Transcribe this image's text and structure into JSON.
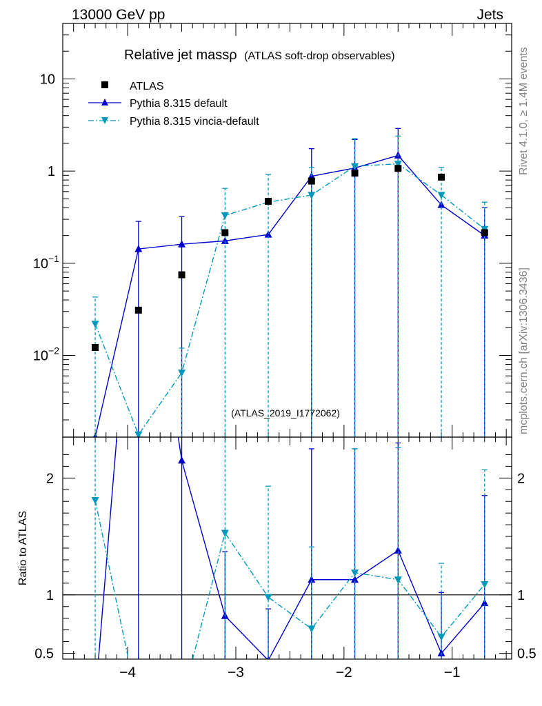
{
  "header": {
    "energy": "13000 GeV pp",
    "category": "Jets"
  },
  "plot": {
    "title_main": "Relative jet massρ",
    "title_sub": "(ATLAS soft-drop observables)",
    "watermark": "(ATLAS_2019_I1772062)",
    "ratio_ylabel": "Ratio to ATLAS",
    "ratio_reference": 1
  },
  "side_labels": {
    "rivet": "Rivet 4.1.0, ≥ 1.4M events",
    "mcplots": "mcplots.cern.ch [arXiv:1306.3436]"
  },
  "colors": {
    "atlas": "#000000",
    "default": "#0000cc",
    "vincia": "#0099bb",
    "watermark": "#999999",
    "side": "#808080"
  },
  "chart_data": {
    "type": "line",
    "x": [
      -4.3,
      -3.9,
      -3.5,
      -3.1,
      -2.7,
      -2.3,
      -1.9,
      -1.5,
      -1.1,
      -0.7
    ],
    "xlim": [
      -4.6,
      -0.45
    ],
    "x_ticks": [
      -4,
      -3,
      -2,
      -1
    ],
    "x_tick_labels": [
      "−4",
      "−3",
      "−2",
      "−1"
    ],
    "main": {
      "ylog": true,
      "ylim": [
        0.0013,
        40
      ],
      "y_tick_labels": [
        {
          "value": 0.01,
          "base": "10",
          "exp": "−2"
        },
        {
          "value": 0.1,
          "base": "10",
          "exp": "−1"
        },
        {
          "value": 1,
          "base": "1",
          "exp": ""
        },
        {
          "value": 10,
          "base": "10",
          "exp": ""
        }
      ]
    },
    "ratio": {
      "ylim": [
        0.45,
        2.35
      ],
      "y_ticks": [
        0.5,
        1,
        2
      ],
      "y_tick_labels": [
        "0.5",
        "1",
        "2"
      ]
    },
    "legend_position": "top-left",
    "series": [
      {
        "name": "ATLAS",
        "marker": "square",
        "color": "#000000",
        "values": [
          0.0122,
          0.031,
          0.075,
          0.215,
          0.47,
          0.78,
          0.95,
          1.07,
          0.86,
          0.215
        ]
      },
      {
        "name": "Pythia 8.315 default",
        "marker": "triangle-up",
        "color": "#0000cc",
        "linestyle": "solid",
        "values": [
          0.0013,
          0.143,
          0.161,
          0.175,
          0.205,
          0.88,
          1.08,
          1.48,
          0.43,
          0.2
        ],
        "err_high": [
          0.0013,
          0.285,
          0.32,
          0.0013,
          0.0013,
          1.75,
          2.2,
          2.9,
          0.0013,
          0.4
        ],
        "ratio": [
          0.11,
          4.6,
          2.15,
          0.82,
          0.44,
          1.13,
          1.13,
          1.38,
          0.5,
          0.93
        ],
        "ratio_err_high": [
          0.11,
          8,
          4,
          1.37,
          0.88,
          2.25,
          2.25,
          2.3,
          1.02,
          1.85
        ]
      },
      {
        "name": "Pythia 8.315 vincia-default",
        "marker": "triangle-down",
        "color": "#0099bb",
        "linestyle": "dash-dot",
        "values": [
          0.022,
          0.00138,
          0.0065,
          0.33,
          0.46,
          0.55,
          1.13,
          1.2,
          0.55,
          0.235
        ],
        "err_high": [
          0.043,
          0.0013,
          0.012,
          0.65,
          0.92,
          1.1,
          2.25,
          2.4,
          1.1,
          0.46
        ],
        "ratio": [
          1.81,
          0.04,
          0.087,
          1.53,
          0.98,
          0.71,
          1.19,
          1.13,
          0.64,
          1.09
        ],
        "ratio_err_high": [
          3.6,
          0.08,
          0.17,
          3.0,
          1.93,
          1.41,
          2.25,
          2.26,
          1.27,
          2.07
        ]
      }
    ]
  }
}
